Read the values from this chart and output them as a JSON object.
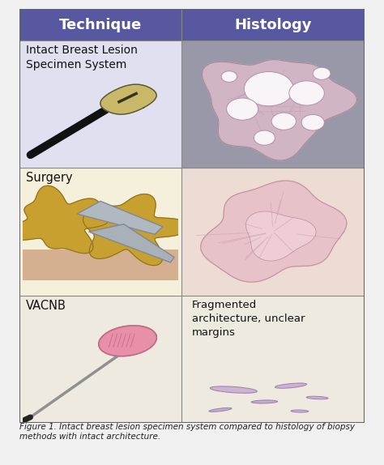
{
  "header_bg": "#5858a0",
  "header_text_color": "#ffffff",
  "col1_header": "Technique",
  "col2_header": "Histology",
  "row1_bg_left": "#e0e0f0",
  "row1_bg_right": "#a0a0b0",
  "row2_bg_left": "#f5f0dc",
  "row2_bg_right": "#f0ece4",
  "row3_bg_left": "#f0ece0",
  "row3_bg_right": "#f0ece0",
  "row1_label": "Intact Breast Lesion\nSpecimen System",
  "row2_label": "Surgery",
  "row3_label": "VACNB",
  "row3_right_text": "Fragmented\narchitecture, unclear\nmargins",
  "border_color": "#888888",
  "text_color": "#111111",
  "figsize": [
    4.74,
    5.74
  ],
  "dpi": 100,
  "header_fontsize": 13,
  "label_fontsize": 11
}
